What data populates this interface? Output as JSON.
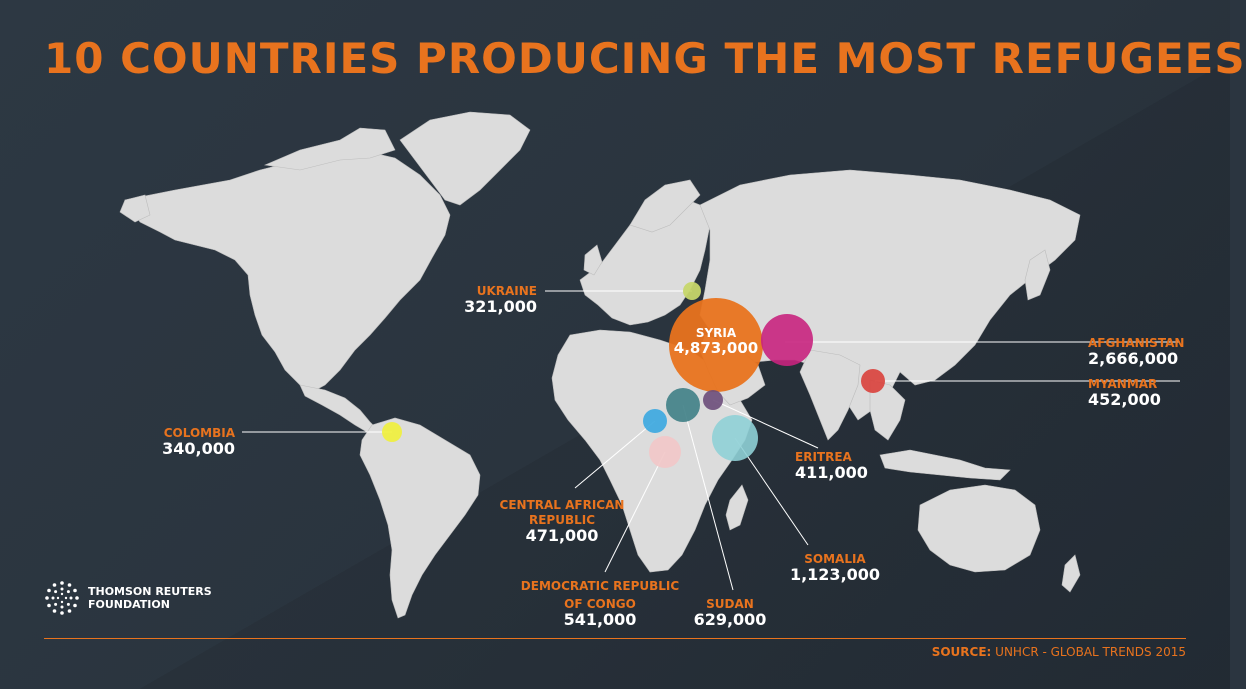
{
  "title": "10 COUNTRIES PRODUCING THE MOST REFUGEES",
  "colors": {
    "accent": "#e8731e",
    "land": "#dcdcdc",
    "background": "#2b3540"
  },
  "countries": {
    "syria": {
      "name": "SYRIA",
      "value": "4,873,000",
      "color": "#e8731e"
    },
    "afghanistan": {
      "name": "AFGHANISTAN",
      "value": "2,666,000",
      "color": "#c8247e"
    },
    "somalia": {
      "name": "SOMALIA",
      "value": "1,123,000",
      "color": "#8fd0d6"
    },
    "sudan": {
      "name": "SUDAN",
      "value": "629,000",
      "color": "#3f7f86"
    },
    "drc": {
      "name_line1": "DEMOCRATIC REPUBLIC",
      "name_line2": "OF CONGO",
      "value": "541,000",
      "color": "#f2c6c8"
    },
    "car": {
      "name_line1": "CENTRAL AFRICAN",
      "name_line2": "REPUBLIC",
      "value": "471,000",
      "color": "#3aa7e0"
    },
    "myanmar": {
      "name": "MYANMAR",
      "value": "452,000",
      "color": "#d9403b"
    },
    "eritrea": {
      "name": "ERITREA",
      "value": "411,000",
      "color": "#6b4c7a"
    },
    "colombia": {
      "name": "COLOMBIA",
      "value": "340,000",
      "color": "#f0f03a"
    },
    "ukraine": {
      "name": "UKRAINE",
      "value": "321,000",
      "color": "#c6d66a"
    }
  },
  "logo": {
    "line1": "THOMSON REUTERS",
    "line2": "FOUNDATION",
    "icon": "thomson-reuters-logo-icon"
  },
  "source": {
    "label": "SOURCE:",
    "text": "UNHCR - GLOBAL TRENDS 2015"
  }
}
